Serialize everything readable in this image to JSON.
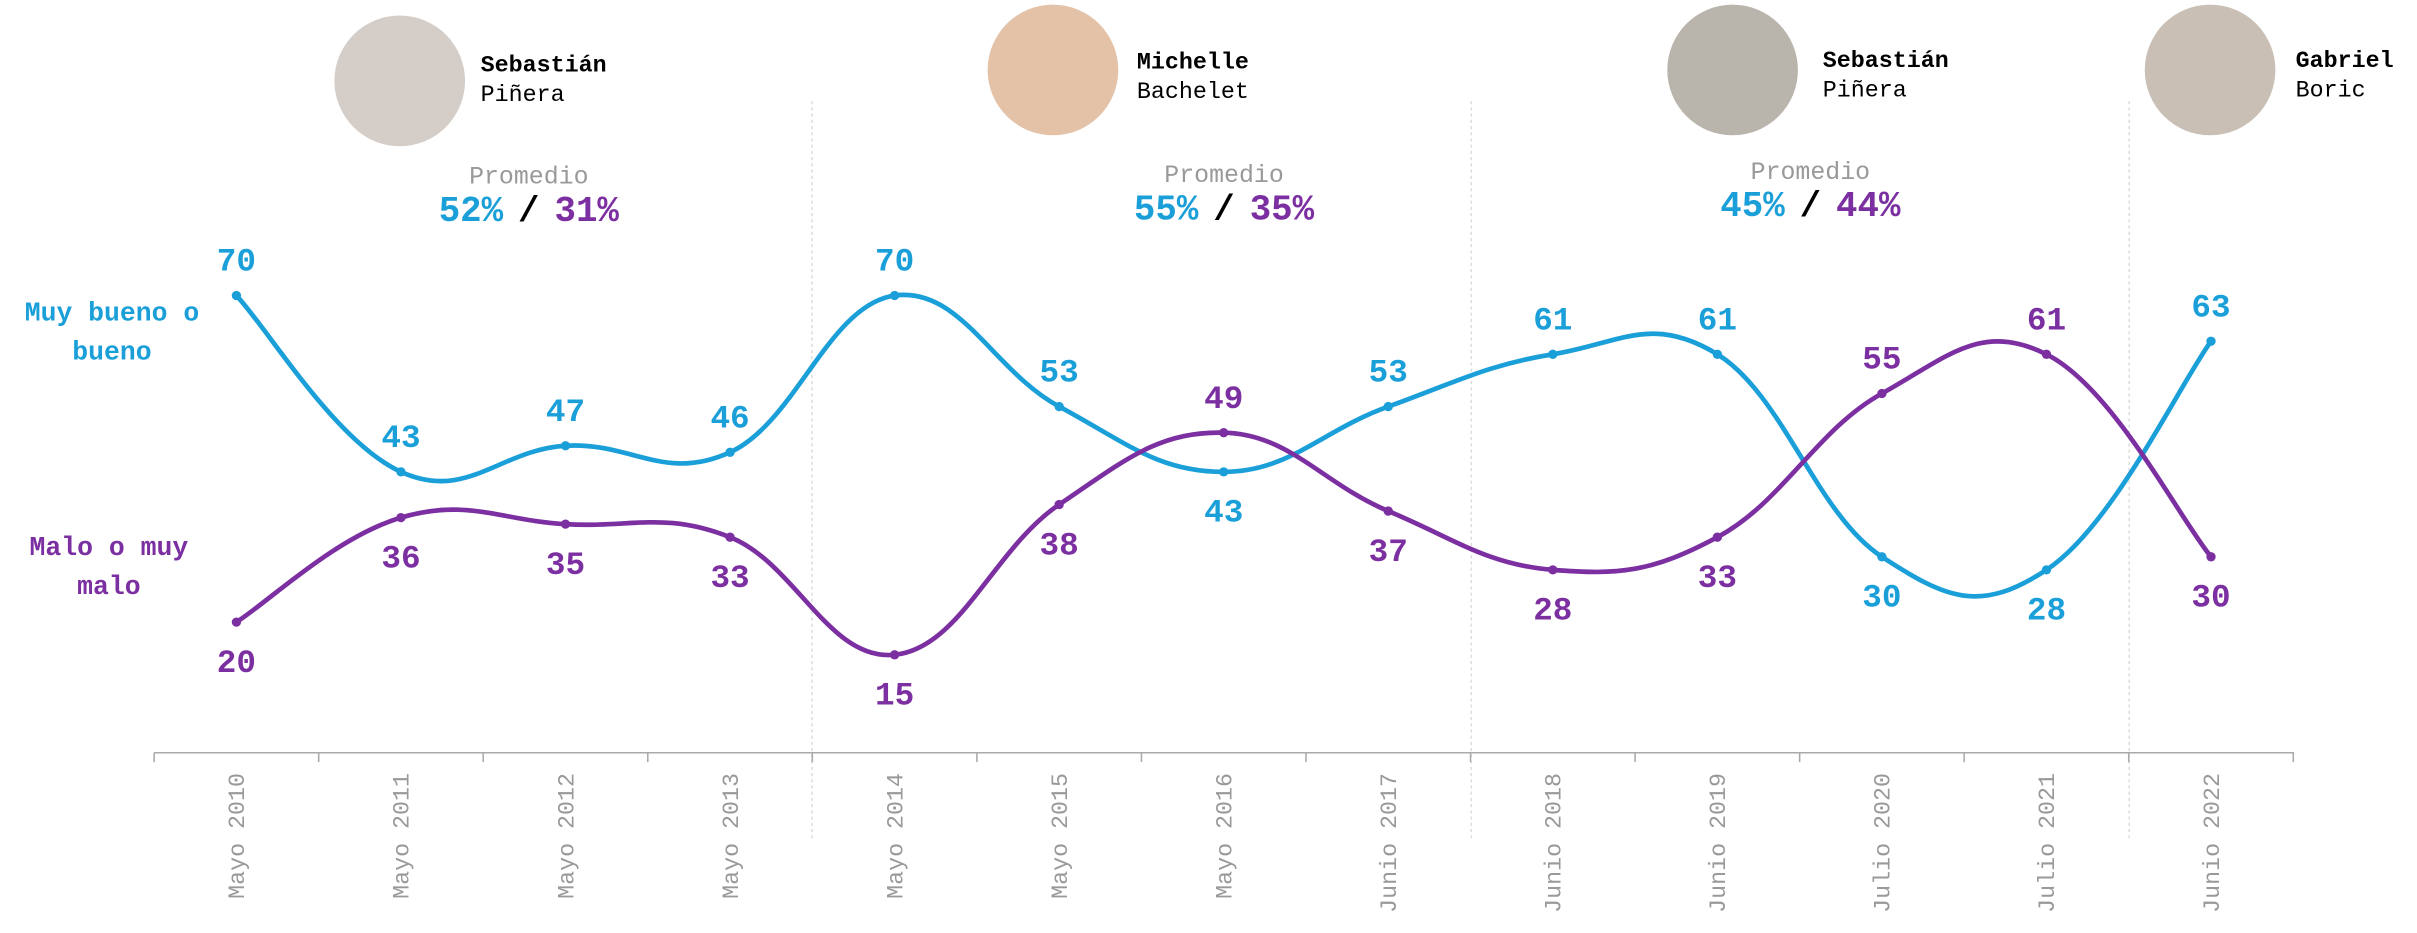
{
  "chart_data": {
    "type": "line",
    "categories": [
      "Mayo 2010",
      "Mayo 2011",
      "Mayo 2012",
      "Mayo 2013",
      "Mayo 2014",
      "Mayo 2015",
      "Mayo 2016",
      "Junio 2017",
      "Junio 2018",
      "Junio 2019",
      "Julio 2020",
      "Julio 2021",
      "Junio 2022"
    ],
    "series": [
      {
        "name": "Muy bueno o bueno",
        "color": "#1a9fd9",
        "values": [
          70,
          43,
          47,
          46,
          70,
          53,
          43,
          53,
          61,
          61,
          30,
          28,
          63
        ]
      },
      {
        "name": "Malo o muy malo",
        "color": "#7b2fa0",
        "values": [
          20,
          36,
          35,
          33,
          15,
          38,
          49,
          37,
          28,
          33,
          55,
          61,
          30
        ]
      }
    ],
    "ylim": [
      0,
      80
    ],
    "separator": "/",
    "periods": [
      {
        "first_name": "Sebastián",
        "last_name": "Piñera",
        "label": "Promedio",
        "good": "52%",
        "bad": "31%"
      },
      {
        "first_name": "Michelle",
        "last_name": "Bachelet",
        "label": "Promedio",
        "good": "55%",
        "bad": "35%"
      },
      {
        "first_name": "Sebastián",
        "last_name": "Piñera",
        "label": "Promedio",
        "good": "45%",
        "bad": "44%"
      },
      {
        "first_name": "Gabriel",
        "last_name": "Boric"
      }
    ]
  }
}
